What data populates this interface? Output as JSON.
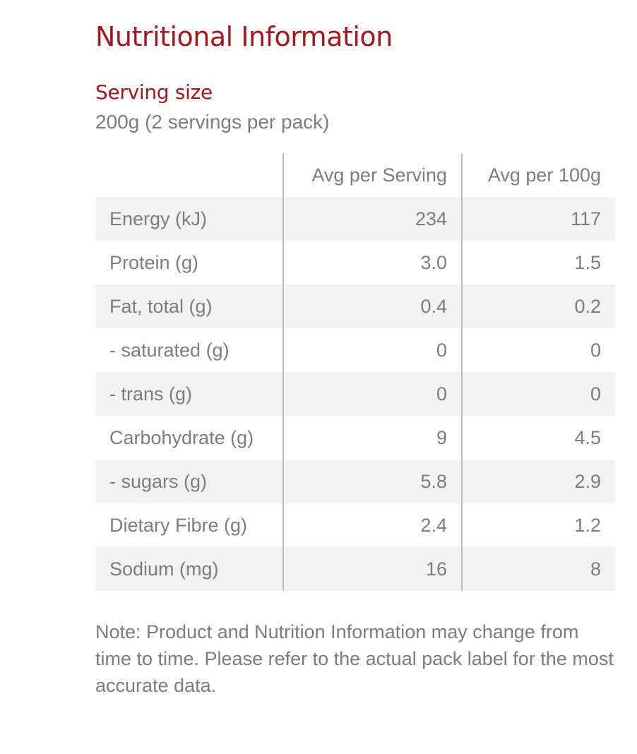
{
  "title": "Nutritional Information",
  "serving": {
    "heading": "Serving size",
    "value": "200g (2 servings per pack)"
  },
  "table": {
    "headers": [
      "",
      "Avg per Serving",
      "Avg per 100g"
    ],
    "rows": [
      {
        "name": "Energy (kJ)",
        "per_serving": "234",
        "per_100g": "117"
      },
      {
        "name": "Protein (g)",
        "per_serving": "3.0",
        "per_100g": "1.5"
      },
      {
        "name": "Fat, total (g)",
        "per_serving": "0.4",
        "per_100g": "0.2"
      },
      {
        "name": "- saturated (g)",
        "per_serving": "0",
        "per_100g": "0"
      },
      {
        "name": "- trans (g)",
        "per_serving": "0",
        "per_100g": "0"
      },
      {
        "name": "Carbohydrate (g)",
        "per_serving": "9",
        "per_100g": "4.5"
      },
      {
        "name": "- sugars (g)",
        "per_serving": "5.8",
        "per_100g": "2.9"
      },
      {
        "name": "Dietary Fibre (g)",
        "per_serving": "2.4",
        "per_100g": "1.2"
      },
      {
        "name": "Sodium (mg)",
        "per_serving": "16",
        "per_100g": "8"
      }
    ]
  },
  "note": "Note: Product and Nutrition Information may change from time to time. Please refer to the actual pack label for the most accurate data.",
  "colors": {
    "accent": "#a3171f",
    "text": "#7d7d7d",
    "stripe": "#f2f2f2",
    "divider": "#bdbdbd"
  }
}
